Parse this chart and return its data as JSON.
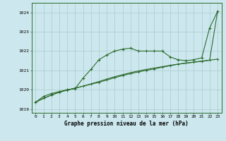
{
  "hours": [
    0,
    1,
    2,
    3,
    4,
    5,
    6,
    7,
    8,
    9,
    10,
    11,
    12,
    13,
    14,
    15,
    16,
    17,
    18,
    19,
    20,
    21,
    22,
    23
  ],
  "pressure_wavy": [
    1019.35,
    1019.65,
    1019.8,
    1019.9,
    1020.0,
    1020.05,
    1020.6,
    1021.05,
    1021.55,
    1021.8,
    1022.0,
    1022.1,
    1022.15,
    1022.0,
    1022.0,
    1022.0,
    1022.0,
    1021.7,
    1021.55,
    1021.5,
    1021.55,
    1021.65,
    1023.2,
    1024.05
  ],
  "pressure_smooth1": [
    1019.35,
    1019.55,
    1019.72,
    1019.87,
    1019.98,
    1020.08,
    1020.18,
    1020.28,
    1020.38,
    1020.5,
    1020.62,
    1020.73,
    1020.83,
    1020.92,
    1021.0,
    1021.08,
    1021.16,
    1021.24,
    1021.32,
    1021.38,
    1021.43,
    1021.48,
    1021.53,
    1021.58
  ],
  "pressure_smooth2": [
    1019.35,
    1019.55,
    1019.72,
    1019.87,
    1019.98,
    1020.08,
    1020.18,
    1020.3,
    1020.42,
    1020.55,
    1020.67,
    1020.78,
    1020.88,
    1020.97,
    1021.05,
    1021.12,
    1021.19,
    1021.26,
    1021.32,
    1021.37,
    1021.42,
    1021.47,
    1021.52,
    1024.05
  ],
  "ylim_min": 1018.8,
  "ylim_max": 1024.5,
  "yticks": [
    1019,
    1020,
    1021,
    1022,
    1023,
    1024
  ],
  "xtick_labels": [
    "0",
    "1",
    "2",
    "3",
    "4",
    "5",
    "6",
    "7",
    "8",
    "9",
    "10",
    "11",
    "12",
    "13",
    "14",
    "15",
    "16",
    "17",
    "18",
    "19",
    "20",
    "21",
    "22",
    "23"
  ],
  "xlabel": "Graphe pression niveau de la mer (hPa)",
  "line_color": "#2d6a2d",
  "bg_color": "#cce8ee",
  "grid_color": "#aacccc",
  "markersize": 3.5,
  "linewidth": 0.8
}
